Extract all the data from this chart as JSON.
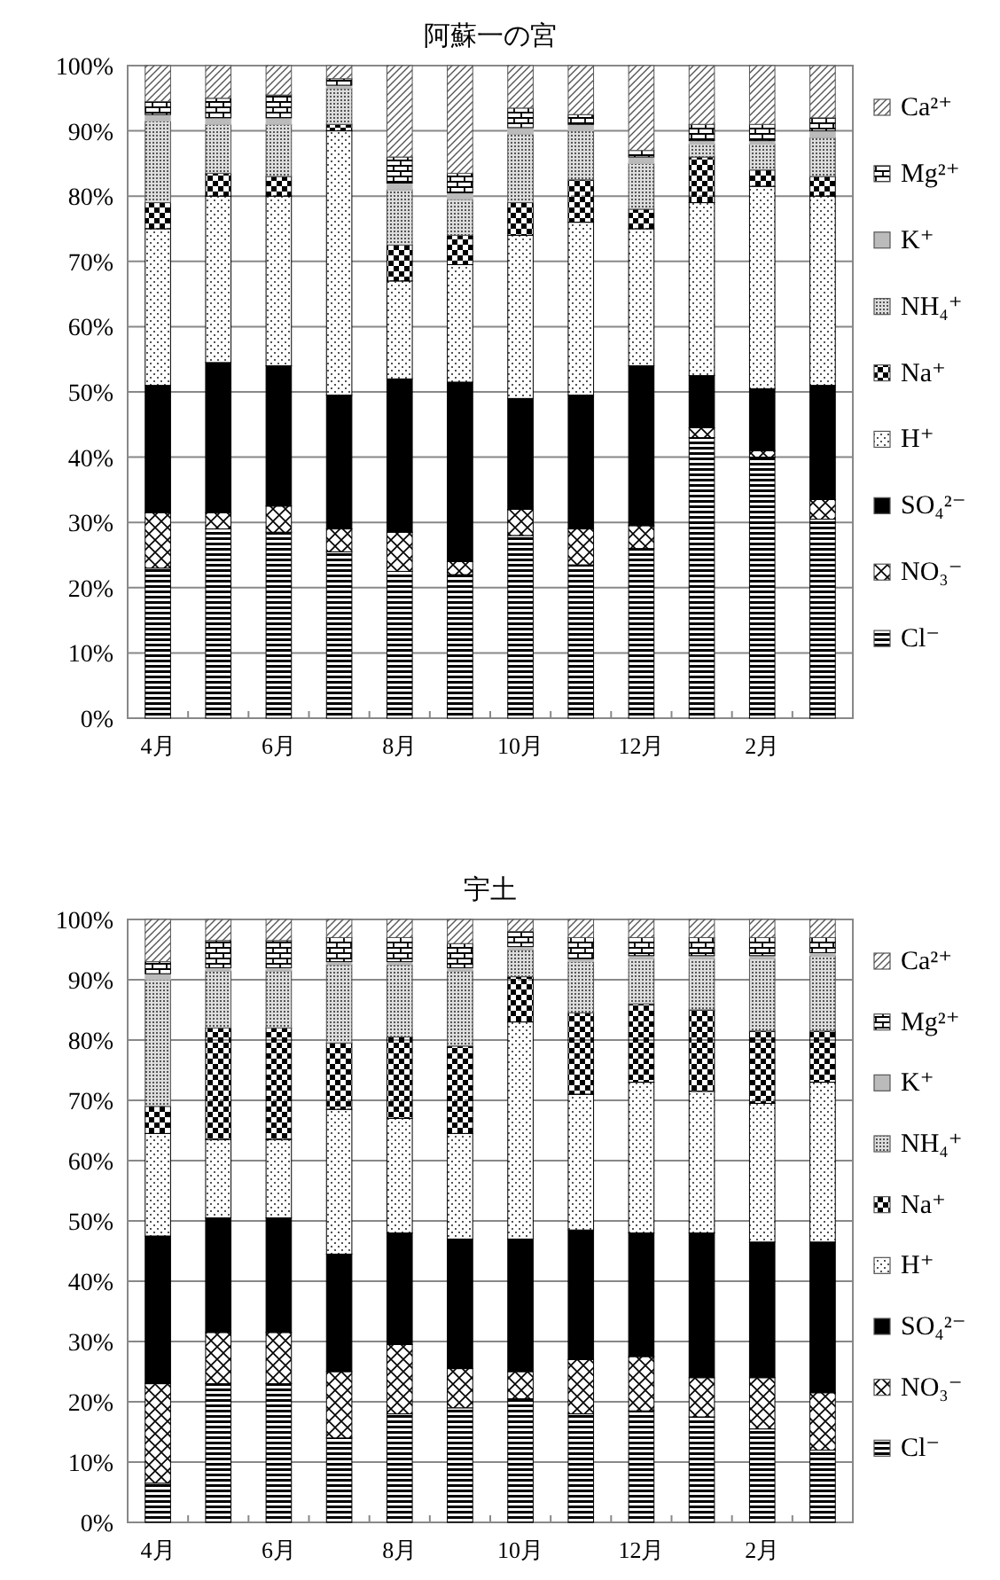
{
  "chart_data": [
    {
      "type": "bar",
      "title": "阿蘇一の宮",
      "stacked": true,
      "grid": "y",
      "legend": "right",
      "categories": [
        "4月",
        null,
        "6月",
        null,
        "8月",
        null,
        "10月",
        null,
        "12月",
        null,
        "2月",
        null
      ],
      "ylim": [
        0,
        100
      ],
      "yticks": [
        {
          "value": 0,
          "label": "0%"
        },
        {
          "value": 10,
          "label": "10%"
        },
        {
          "value": 20,
          "label": "20%"
        },
        {
          "value": 30,
          "label": "30%"
        },
        {
          "value": 40,
          "label": "40%"
        },
        {
          "value": 50,
          "label": "50%"
        },
        {
          "value": 60,
          "label": "60%"
        },
        {
          "value": 70,
          "label": "70%"
        },
        {
          "value": 80,
          "label": "80%"
        },
        {
          "value": 90,
          "label": "90%"
        },
        {
          "value": 100,
          "label": "100%"
        }
      ],
      "series": [
        {
          "name": "Cl⁻",
          "color": "#000000",
          "values": [
            23,
            29,
            28.5,
            25.5,
            22.5,
            22,
            28,
            23.5,
            26,
            43,
            40,
            30.5
          ]
        },
        {
          "name": "NO₃⁻",
          "color": "#000000",
          "values": [
            8.5,
            2.5,
            4,
            3.5,
            6,
            2,
            4,
            5.5,
            3.5,
            1.5,
            1,
            3
          ]
        },
        {
          "name": "SO₄²⁻",
          "color": "#000000",
          "values": [
            19.5,
            23,
            21.5,
            20.5,
            23.5,
            27.5,
            17,
            20.5,
            24.5,
            8,
            9.5,
            17.5
          ]
        },
        {
          "name": "H⁺",
          "color": "#000000",
          "values": [
            24,
            25.5,
            26,
            40.5,
            15,
            18,
            25,
            26.5,
            21,
            26.5,
            31,
            29
          ]
        },
        {
          "name": "Na⁺",
          "color": "#000000",
          "values": [
            4,
            3.5,
            3,
            1,
            5.5,
            4.5,
            5,
            6.5,
            3,
            7,
            2.5,
            3
          ]
        },
        {
          "name": "NH₄⁺",
          "color": "#555555",
          "values": [
            12.5,
            7.5,
            8,
            5.5,
            8.5,
            5.5,
            10.5,
            7.5,
            7,
            2,
            4,
            6
          ]
        },
        {
          "name": "K⁺",
          "color": "#bbbbbb",
          "values": [
            1,
            1,
            1,
            0.5,
            1,
            1,
            1,
            1,
            1,
            0.5,
            0.5,
            1
          ]
        },
        {
          "name": "Mg²⁺",
          "color": "#000000",
          "values": [
            2,
            3,
            3.5,
            1,
            4,
            3,
            3,
            1.5,
            1,
            2.5,
            2.5,
            2
          ]
        },
        {
          "name": "Ca²⁺",
          "color": "#555555",
          "values": [
            5.5,
            5,
            4.5,
            2,
            14,
            16.5,
            6.5,
            7.5,
            13,
            9,
            9,
            8
          ]
        }
      ]
    },
    {
      "type": "bar",
      "title": "宇土",
      "stacked": true,
      "grid": "y",
      "legend": "right",
      "categories": [
        "4月",
        null,
        "6月",
        null,
        "8月",
        null,
        "10月",
        null,
        "12月",
        null,
        "2月",
        null
      ],
      "ylim": [
        0,
        100
      ],
      "yticks": [
        {
          "value": 0,
          "label": "0%"
        },
        {
          "value": 10,
          "label": "10%"
        },
        {
          "value": 20,
          "label": "20%"
        },
        {
          "value": 30,
          "label": "30%"
        },
        {
          "value": 40,
          "label": "40%"
        },
        {
          "value": 50,
          "label": "50%"
        },
        {
          "value": 60,
          "label": "60%"
        },
        {
          "value": 70,
          "label": "70%"
        },
        {
          "value": 80,
          "label": "80%"
        },
        {
          "value": 90,
          "label": "90%"
        },
        {
          "value": 100,
          "label": "100%"
        }
      ],
      "series": [
        {
          "name": "Cl⁻",
          "color": "#000000",
          "values": [
            6.5,
            23,
            23,
            14,
            18,
            19,
            20.5,
            18,
            18.5,
            17.5,
            15.5,
            12
          ]
        },
        {
          "name": "NO₃⁻",
          "color": "#000000",
          "values": [
            16.5,
            8.5,
            8.5,
            11,
            11.5,
            6.5,
            4.5,
            9,
            9,
            6.5,
            8.5,
            9.5
          ]
        },
        {
          "name": "SO₄²⁻",
          "color": "#000000",
          "values": [
            24.5,
            19,
            19,
            19.5,
            18.5,
            21.5,
            22,
            21.5,
            20.5,
            24,
            22.5,
            25
          ]
        },
        {
          "name": "H⁺",
          "color": "#000000",
          "values": [
            17,
            13,
            13,
            24,
            19,
            17.5,
            36,
            22.5,
            25,
            23.5,
            23,
            26.5
          ]
        },
        {
          "name": "Na⁺",
          "color": "#000000",
          "values": [
            4.5,
            18.5,
            18.5,
            11,
            13.5,
            14.5,
            7.5,
            13.5,
            13,
            13.5,
            12,
            8.5
          ]
        },
        {
          "name": "NH₄⁺",
          "color": "#555555",
          "values": [
            21,
            9.5,
            9.5,
            13,
            12,
            12.5,
            4.5,
            8.5,
            7.5,
            8.5,
            12,
            12.5
          ]
        },
        {
          "name": "K⁺",
          "color": "#bbbbbb",
          "values": [
            1,
            0.5,
            0.5,
            0.5,
            0.5,
            0.5,
            0.5,
            0.5,
            0.5,
            0.5,
            0.5,
            0.5
          ]
        },
        {
          "name": "Mg²⁺",
          "color": "#000000",
          "values": [
            2,
            4.5,
            4.5,
            4,
            4,
            4,
            2.5,
            3.5,
            3,
            3,
            3,
            2.5
          ]
        },
        {
          "name": "Ca²⁺",
          "color": "#555555",
          "values": [
            7,
            3.5,
            3.5,
            3,
            3,
            4,
            2,
            3,
            3,
            3,
            3,
            3
          ]
        }
      ]
    }
  ]
}
